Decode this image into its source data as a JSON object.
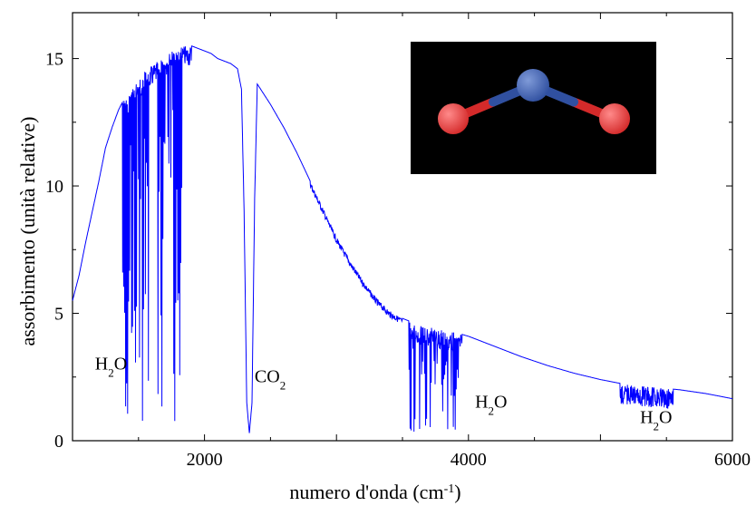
{
  "chart_data": {
    "type": "line",
    "title": "",
    "xlabel": "numero d'onda (cm",
    "xlabel_sup": "-1",
    "xlabel_end": ")",
    "ylabel": "assorbimento (unità relative)",
    "xlim": [
      1000,
      6000
    ],
    "ylim": [
      0,
      16.8
    ],
    "x_ticks": [
      2000,
      4000,
      6000
    ],
    "x_tick_labels": [
      "2000",
      "4000",
      "6000"
    ],
    "y_ticks": [
      0,
      5,
      10,
      15
    ],
    "y_tick_labels": [
      "0",
      "5",
      "10",
      "15"
    ],
    "grid": false,
    "legend": "none",
    "series": [
      {
        "color": "#0000ff",
        "x": [
          1000,
          1050,
          1100,
          1150,
          1200,
          1250,
          1300,
          1350,
          1400,
          1450,
          1500,
          1550,
          1600,
          1650,
          1700,
          1750,
          1800,
          1850,
          1900,
          1950,
          2000,
          2050,
          2100,
          2150,
          2200,
          2250,
          2280,
          2300,
          2320,
          2340,
          2360,
          2380,
          2400,
          2500,
          2600,
          2700,
          2800,
          2900,
          3000,
          3100,
          3200,
          3300,
          3400,
          3500,
          3600,
          3700,
          3800,
          3900,
          4000,
          4200,
          4400,
          4600,
          4800,
          5000,
          5200,
          5400,
          5600,
          5800,
          6000
        ],
        "y": [
          5.5,
          6.5,
          7.8,
          9.0,
          10.2,
          11.5,
          12.3,
          13.0,
          13.5,
          13.8,
          14.2,
          14.5,
          14.7,
          14.9,
          15.1,
          15.3,
          15.4,
          15.5,
          15.5,
          15.4,
          15.3,
          15.2,
          15.0,
          14.9,
          14.8,
          14.6,
          13.8,
          9.0,
          1.5,
          0.3,
          1.5,
          9.5,
          14.0,
          13.2,
          12.3,
          11.3,
          10.2,
          9.1,
          8.0,
          7.1,
          6.3,
          5.6,
          5.1,
          4.8,
          4.6,
          4.45,
          4.35,
          4.25,
          4.1,
          3.7,
          3.3,
          2.95,
          2.65,
          2.4,
          2.2,
          2.1,
          2.0,
          1.85,
          1.65
        ]
      }
    ],
    "absorption_bands": [
      {
        "x_min": 1380,
        "x_max": 1900,
        "min_depth": 0.5,
        "count": 70
      },
      {
        "x_min": 3550,
        "x_max": 3950,
        "min_depth": 0.1,
        "count": 55
      },
      {
        "x_min": 5150,
        "x_max": 5550,
        "min_depth": 1.4,
        "count": 40
      }
    ],
    "annotations": [
      {
        "id": "h2o-1",
        "text": "H",
        "sub": "2",
        "tail": "O",
        "x": 1170,
        "y": 2.8
      },
      {
        "id": "co2",
        "text": "CO",
        "sub": "2",
        "tail": "",
        "x": 2380,
        "y": 2.3
      },
      {
        "id": "h2o-2",
        "text": "H",
        "sub": "2",
        "tail": "O",
        "x": 4050,
        "y": 1.3
      },
      {
        "id": "h2o-3",
        "text": "H",
        "sub": "2",
        "tail": "O",
        "x": 5300,
        "y": 0.7
      }
    ],
    "inset": {
      "description": "molecule render",
      "background": "#000000",
      "atom_colors": {
        "oxygen": "#d42a2a",
        "nitrogen": "#3050a0"
      }
    }
  }
}
